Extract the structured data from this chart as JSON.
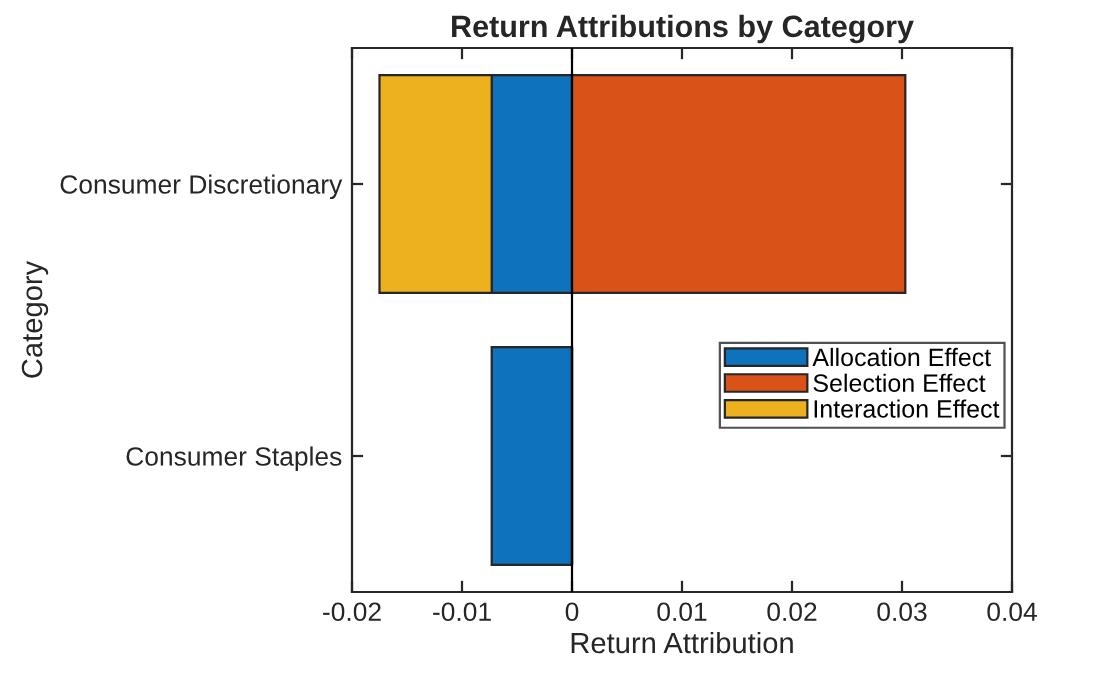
{
  "chart_data": {
    "type": "bar",
    "orientation": "horizontal",
    "stacked": true,
    "title": "Return Attributions by Category",
    "xlabel": "Return Attribution",
    "ylabel": "Category",
    "categories": [
      "Consumer Discretionary",
      "Consumer Staples"
    ],
    "series": [
      {
        "name": "Allocation Effect",
        "color": "#0f72bd",
        "values": [
          -0.0073,
          -0.0073
        ]
      },
      {
        "name": "Selection Effect",
        "color": "#d95319",
        "values": [
          0.0303,
          0
        ]
      },
      {
        "name": "Interaction Effect",
        "color": "#edb120",
        "values": [
          -0.0102,
          0
        ]
      }
    ],
    "xlim": [
      -0.02,
      0.04
    ],
    "xticks": [
      -0.02,
      -0.01,
      0,
      0.01,
      0.02,
      0.03,
      0.04
    ],
    "ref_lines": [
      {
        "axis": "x",
        "value": 0,
        "color": "#000000"
      }
    ],
    "legend": "right"
  }
}
